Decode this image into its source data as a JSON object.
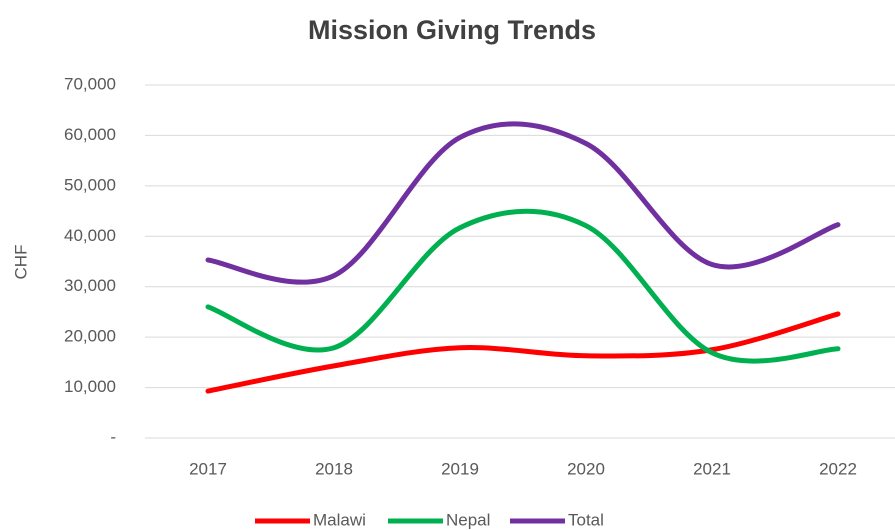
{
  "chart_data": {
    "type": "line",
    "title": "Mission Giving Trends",
    "y_label": "CHF",
    "categories": [
      "2017",
      "2018",
      "2019",
      "2020",
      "2021",
      "2022"
    ],
    "series": [
      {
        "name": "Malawi",
        "color": "#ff0000",
        "values": [
          9300,
          14300,
          17900,
          16300,
          17500,
          24600
        ]
      },
      {
        "name": "Nepal",
        "color": "#00b050",
        "values": [
          26000,
          17900,
          41700,
          42100,
          16900,
          17700
        ]
      },
      {
        "name": "Total",
        "color": "#7030a0",
        "values": [
          35300,
          32200,
          59600,
          58400,
          34400,
          42300
        ]
      }
    ],
    "ylim": [
      0,
      70000
    ],
    "yticks": [
      {
        "value": 0,
        "label": "-"
      },
      {
        "value": 10000,
        "label": "10,000"
      },
      {
        "value": 20000,
        "label": "20,000"
      },
      {
        "value": 30000,
        "label": "30,000"
      },
      {
        "value": 40000,
        "label": "40,000"
      },
      {
        "value": 50000,
        "label": "50,000"
      },
      {
        "value": 60000,
        "label": "60,000"
      },
      {
        "value": 70000,
        "label": "70,000"
      }
    ],
    "grid": true,
    "smooth": true,
    "legend": "bottom"
  }
}
